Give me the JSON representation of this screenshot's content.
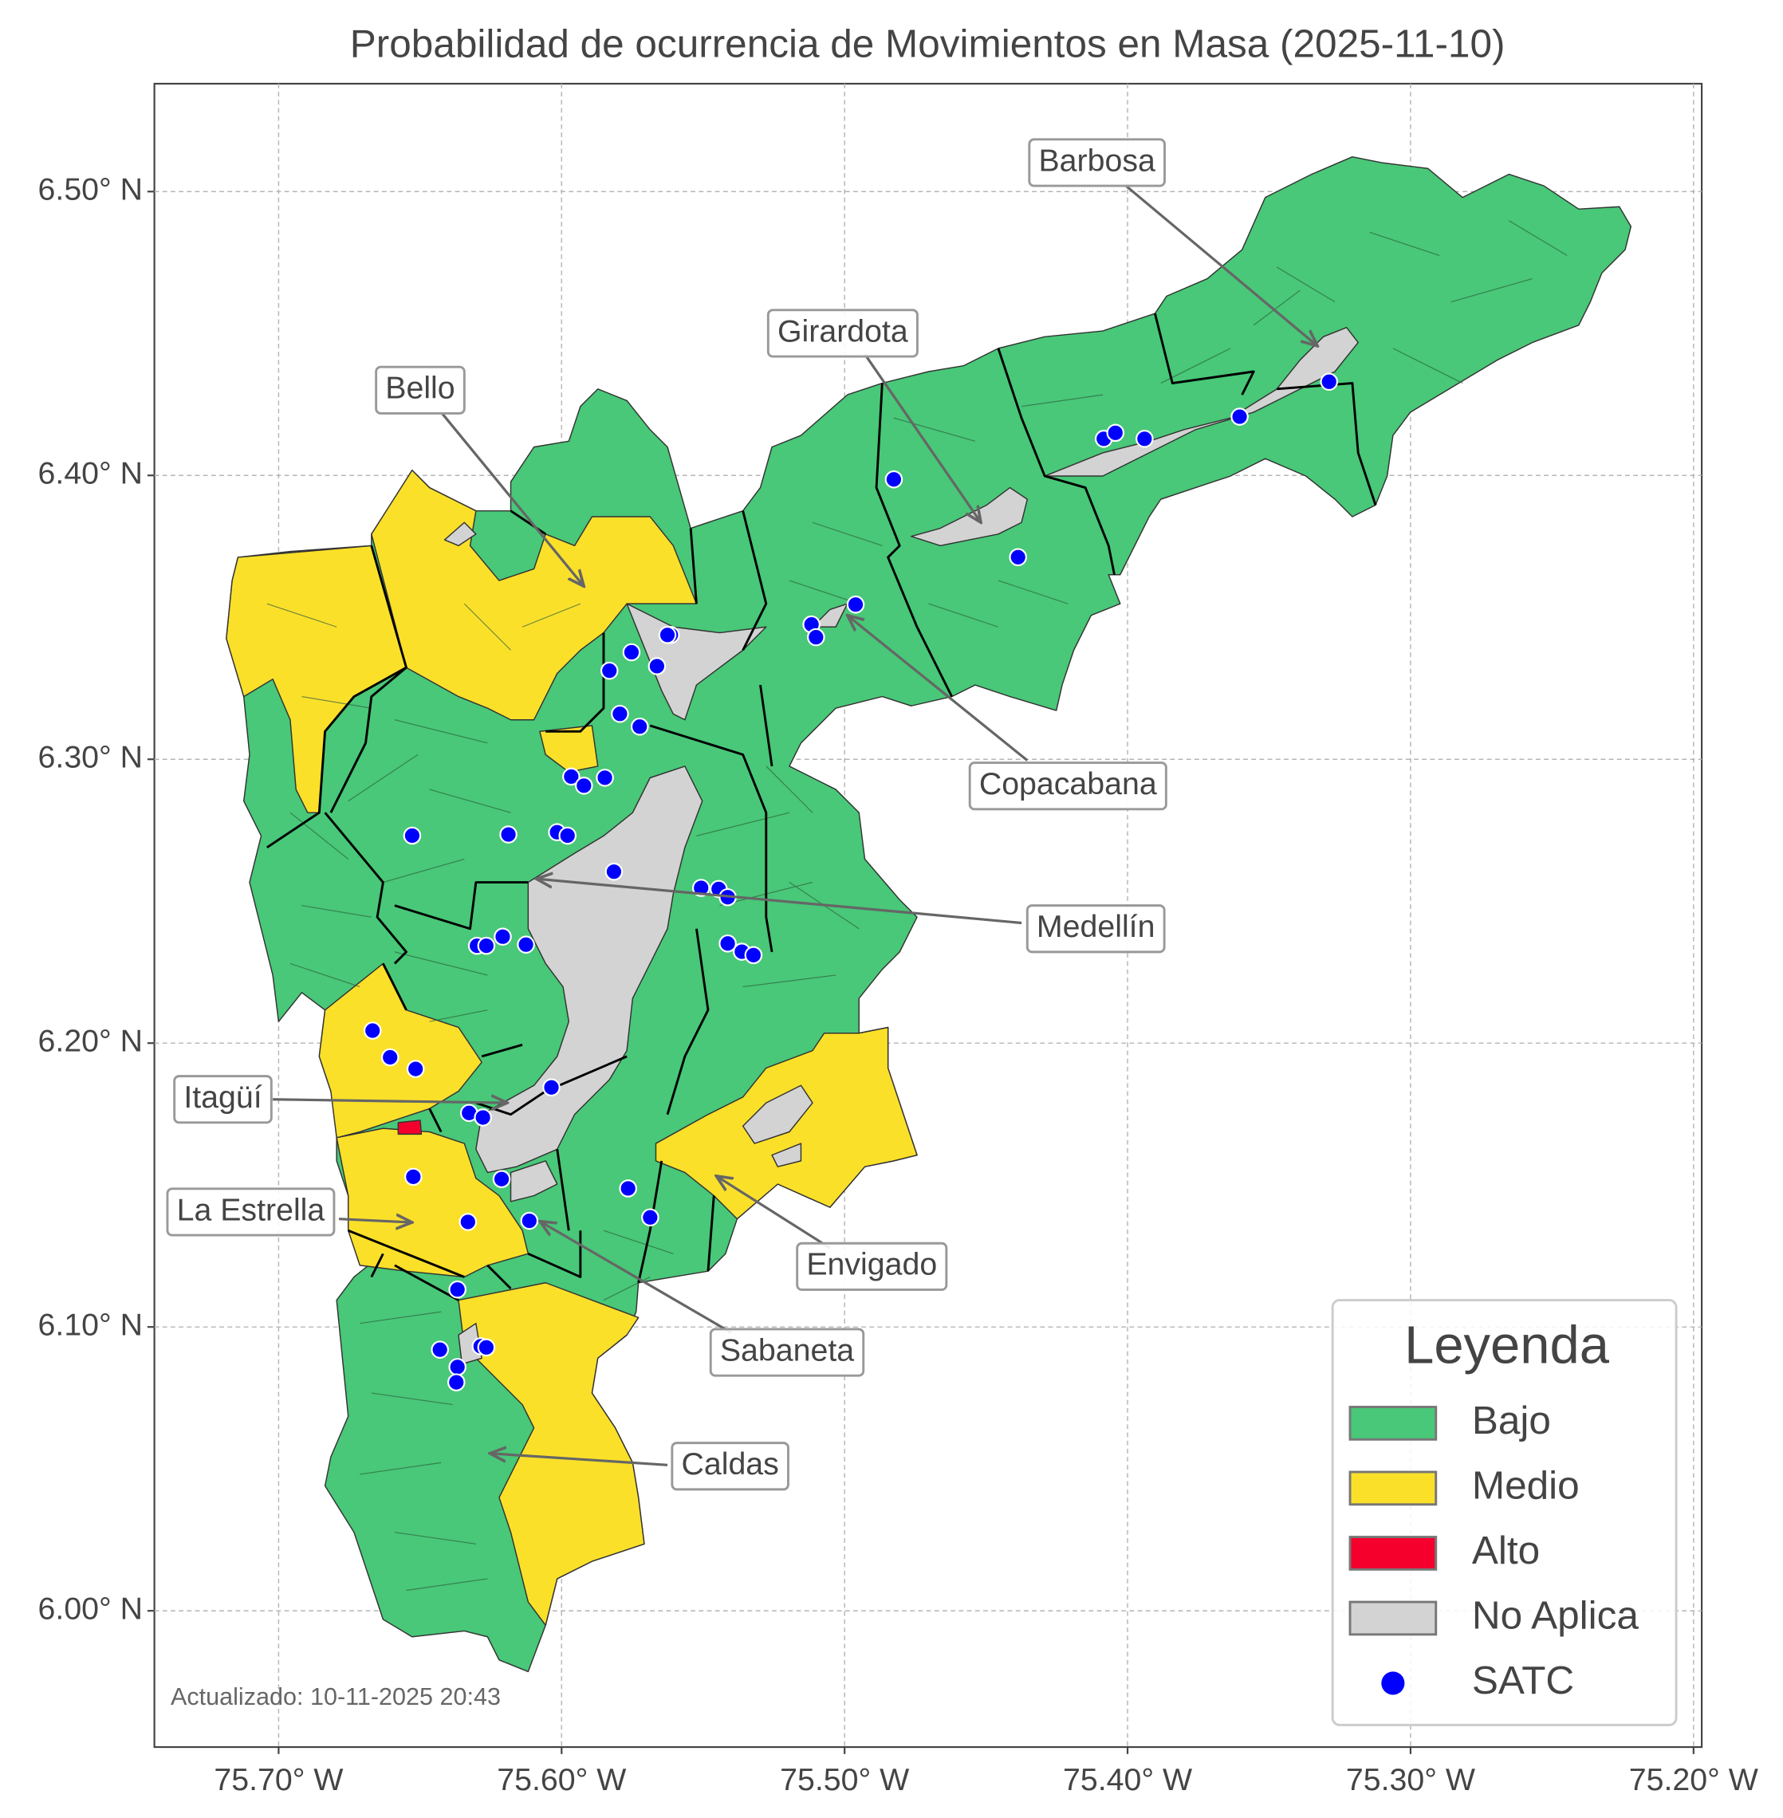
{
  "title": "Probabilidad de ocurrencia de Movimientos en Masa (2025-11-10)",
  "xlim": [
    -75.7439,
    -75.1971
  ],
  "ylim": [
    5.952,
    6.538
  ],
  "xticks": [
    {
      "value": -75.7,
      "label": "75.70° W"
    },
    {
      "value": -75.6,
      "label": "75.60° W"
    },
    {
      "value": -75.5,
      "label": "75.50° W"
    },
    {
      "value": -75.4,
      "label": "75.40° W"
    },
    {
      "value": -75.3,
      "label": "75.30° W"
    },
    {
      "value": -75.2,
      "label": "75.20° W"
    }
  ],
  "yticks": [
    {
      "value": 6.0,
      "label": "6.00° N"
    },
    {
      "value": 6.1,
      "label": "6.10° N"
    },
    {
      "value": 6.2,
      "label": "6.20° N"
    },
    {
      "value": 6.3,
      "label": "6.30° N"
    },
    {
      "value": 6.4,
      "label": "6.40° N"
    },
    {
      "value": 6.5,
      "label": "6.50° N"
    }
  ],
  "grid": true,
  "annotations": [
    "Barbosa",
    "Girardota",
    "Bello",
    "Copacabana",
    "Medellín",
    "Itagüí",
    "La Estrella",
    "Envigado",
    "Sabaneta",
    "Caldas"
  ],
  "legend": {
    "title": "Leyenda",
    "items": [
      {
        "label": "Bajo",
        "color": "#48c878"
      },
      {
        "label": "Medio",
        "color": "#fbe02a"
      },
      {
        "label": "Alto",
        "color": "#f5002d"
      },
      {
        "label": "No Aplica",
        "color": "#d3d3d3"
      },
      {
        "label": "SATC",
        "color": "#0000ff"
      }
    ]
  },
  "satc": {
    "lon": [
      -75.3288,
      -75.3604,
      -75.4084,
      -75.4043,
      -75.394,
      -75.4826,
      -75.4387,
      -75.4961,
      -75.5117,
      -75.5101,
      -75.5614,
      -75.5626,
      -75.5753,
      -75.5831,
      -75.5663,
      -75.5794,
      -75.5724,
      -75.5966,
      -75.5921,
      -75.5847,
      -75.6528,
      -75.6188,
      -75.6016,
      -75.5979,
      -75.5815,
      -75.5507,
      -75.5445,
      -75.5413,
      -75.6299,
      -75.6266,
      -75.6208,
      -75.6126,
      -75.5413,
      -75.5363,
      -75.5322,
      -75.6668,
      -75.6606,
      -75.6516,
      -75.6036,
      -75.6327,
      -75.6278,
      -75.6524,
      -75.6212,
      -75.5765,
      -75.5687,
      -75.6331,
      -75.6114,
      -75.6368,
      -75.643,
      -75.6286,
      -75.6266,
      -75.6368,
      -75.6372
    ],
    "lat": [
      6.433,
      6.4207,
      6.4129,
      6.415,
      6.4129,
      6.3986,
      6.3712,
      6.3545,
      6.3475,
      6.343,
      6.3438,
      6.3438,
      6.3377,
      6.3312,
      6.3328,
      6.316,
      6.3115,
      6.2939,
      6.2907,
      6.2935,
      6.2731,
      6.2735,
      6.2743,
      6.2731,
      6.2604,
      6.2547,
      6.2543,
      6.2514,
      6.2343,
      6.2343,
      6.2375,
      6.2347,
      6.2351,
      6.2322,
      6.231,
      6.2044,
      6.195,
      6.1909,
      6.1844,
      6.1754,
      6.1738,
      6.1529,
      6.1521,
      6.1488,
      6.1386,
      6.137,
      6.1374,
      6.1132,
      6.092,
      6.0932,
      6.0928,
      6.0859,
      6.0805
    ]
  },
  "footer": "Actualizado: 10-11-2025 20:43"
}
